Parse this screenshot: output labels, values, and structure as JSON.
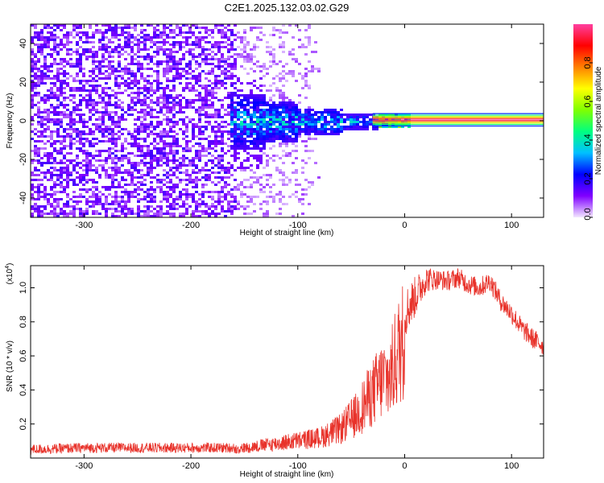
{
  "title": "C2E1.2025.132.03.02.G29",
  "colors": {
    "snr_line": "#e8322a",
    "axis": "#000000",
    "background": "#ffffff"
  },
  "chart_data": [
    {
      "type": "heatmap",
      "name": "spectrogram",
      "xlabel": "Height of straight line (km)",
      "ylabel": "Frequency (Hz)",
      "xlim": [
        -350,
        130
      ],
      "ylim": [
        -50,
        50
      ],
      "xticks": [
        -300,
        -200,
        -100,
        0,
        100
      ],
      "xtick_labels": [
        "-300",
        "-200",
        "-100",
        "0",
        "100"
      ],
      "yticks": [
        -40,
        -20,
        0,
        20,
        40
      ],
      "ytick_labels": [
        "-40",
        "-20",
        "0",
        "20",
        "40"
      ],
      "colorbar": {
        "label": "Normalized spectral amplitude",
        "range": [
          0,
          1
        ],
        "ticks": [
          0.0,
          0.2,
          0.4,
          0.6,
          0.8
        ],
        "tick_labels": [
          "0.0",
          "0.2",
          "0.4",
          "0.6",
          "0.8"
        ],
        "colormap": [
          "#f2e6ff",
          "#8000ff",
          "#0000ff",
          "#00c0ff",
          "#00ff80",
          "#80ff00",
          "#ffff00",
          "#ff8000",
          "#ff0000",
          "#ff40a0"
        ]
      },
      "regions": [
        {
          "description_ref": "noise",
          "x_range": [
            -350,
            -160
          ],
          "freq_range": [
            -50,
            50
          ],
          "amplitude": 0.1
        },
        {
          "description_ref": "sparse noise",
          "x_range": [
            -160,
            -80
          ],
          "freq_range": [
            -50,
            50
          ],
          "amplitude": 0.05
        },
        {
          "description_ref": "broadened carrier",
          "x_range": [
            -160,
            -30
          ],
          "freq_spread": [
            [
              -160,
              15
            ],
            [
              -130,
              12
            ],
            [
              -100,
              8
            ],
            [
              -60,
              5
            ],
            [
              -30,
              3
            ]
          ],
          "amplitude": 0.3
        },
        {
          "description_ref": "carrier",
          "x_range": [
            -30,
            130
          ],
          "freq_center": 0.5,
          "amplitude": 0.95
        }
      ]
    },
    {
      "type": "line",
      "name": "snr",
      "xlabel": "Height of straight line (km)",
      "ylabel": "SNR (10 * v/v)",
      "yscale_label": "(x10",
      "yscale_exponent": "4",
      "xlim": [
        -350,
        130
      ],
      "ylim": [
        0,
        1.13
      ],
      "xticks": [
        -300,
        -200,
        -100,
        0,
        100
      ],
      "xtick_labels": [
        "-300",
        "-200",
        "-100",
        "0",
        "100"
      ],
      "yticks": [
        0.2,
        0.4,
        0.6,
        0.8,
        1.0
      ],
      "ytick_labels": [
        "0.2",
        "0.4",
        "0.6",
        "0.8",
        "1.0"
      ],
      "envelope": {
        "x": [
          -350,
          -300,
          -250,
          -200,
          -160,
          -140,
          -120,
          -100,
          -80,
          -60,
          -45,
          -30,
          -20,
          -14,
          -10,
          -5,
          0,
          10,
          20,
          30,
          40,
          50,
          60,
          70,
          80,
          90,
          100,
          110,
          120,
          130
        ],
        "y": [
          0.05,
          0.06,
          0.06,
          0.06,
          0.06,
          0.08,
          0.1,
          0.12,
          0.14,
          0.2,
          0.3,
          0.45,
          0.55,
          0.55,
          0.65,
          0.75,
          0.85,
          0.95,
          1.05,
          1.05,
          1.04,
          1.06,
          1.02,
          1.0,
          1.04,
          0.92,
          0.85,
          0.76,
          0.7,
          0.66
        ],
        "noise": [
          0.03,
          0.03,
          0.03,
          0.03,
          0.03,
          0.05,
          0.08,
          0.1,
          0.12,
          0.18,
          0.22,
          0.28,
          0.3,
          0.25,
          0.2,
          0.2,
          0.15,
          0.12,
          0.08,
          0.06,
          0.06,
          0.06,
          0.06,
          0.06,
          0.06,
          0.06,
          0.06,
          0.06,
          0.06,
          0.06
        ]
      }
    }
  ]
}
